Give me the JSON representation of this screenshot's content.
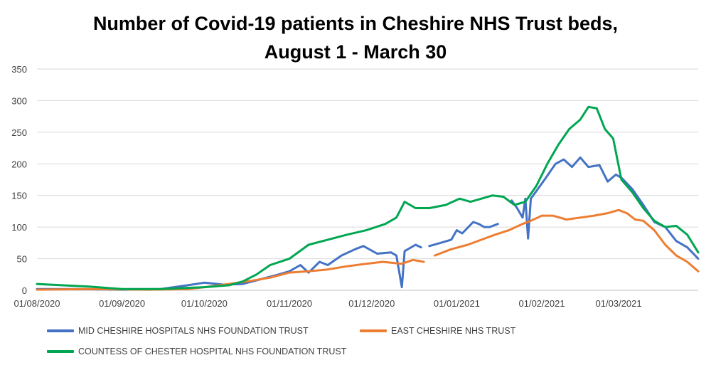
{
  "chart_data": {
    "type": "line",
    "title_lines": [
      "Number of Covid-19 patients in Cheshire NHS Trust beds,",
      "August 1 - March 30"
    ],
    "xlabel": "",
    "ylabel": "",
    "ylim": [
      0,
      350
    ],
    "yticks": [
      0,
      50,
      100,
      150,
      200,
      250,
      300,
      350
    ],
    "xlim": [
      "2020-08-01",
      "2021-03-30"
    ],
    "xticks": [
      "01/08/2020",
      "01/09/2020",
      "01/10/2020",
      "01/11/2020",
      "01/12/2020",
      "01/01/2021",
      "01/02/2021",
      "01/03/2021"
    ],
    "grid": "horizontal",
    "legend_position": "bottom",
    "series": [
      {
        "name": "MID CHESHIRE HOSPITALS NHS FOUNDATION TRUST",
        "color": "#4472C4",
        "segments": [
          [
            [
              "2020-08-01",
              2
            ],
            [
              "2020-08-15",
              2
            ],
            [
              "2020-09-01",
              1
            ],
            [
              "2020-09-15",
              2
            ],
            [
              "2020-09-25",
              8
            ],
            [
              "2020-10-01",
              12
            ],
            [
              "2020-10-08",
              9
            ],
            [
              "2020-10-15",
              10
            ],
            [
              "2020-10-22",
              18
            ],
            [
              "2020-10-28",
              25
            ],
            [
              "2020-11-01",
              30
            ],
            [
              "2020-11-05",
              40
            ],
            [
              "2020-11-08",
              28
            ],
            [
              "2020-11-12",
              45
            ],
            [
              "2020-11-15",
              40
            ],
            [
              "2020-11-20",
              55
            ],
            [
              "2020-11-25",
              65
            ],
            [
              "2020-11-28",
              70
            ],
            [
              "2020-12-03",
              58
            ],
            [
              "2020-12-08",
              60
            ],
            [
              "2020-12-10",
              55
            ],
            [
              "2020-12-12",
              5
            ],
            [
              "2020-12-13",
              62
            ],
            [
              "2020-12-17",
              72
            ],
            [
              "2020-12-19",
              68
            ]
          ],
          [
            [
              "2020-12-22",
              70
            ],
            [
              "2020-12-26",
              75
            ],
            [
              "2020-12-30",
              80
            ],
            [
              "2021-01-01",
              95
            ],
            [
              "2021-01-03",
              90
            ],
            [
              "2021-01-07",
              108
            ],
            [
              "2021-01-09",
              105
            ],
            [
              "2021-01-11",
              100
            ],
            [
              "2021-01-13",
              100
            ],
            [
              "2021-01-16",
              105
            ]
          ],
          [
            [
              "2021-01-21",
              142
            ],
            [
              "2021-01-23",
              130
            ],
            [
              "2021-01-25",
              115
            ],
            [
              "2021-01-26",
              145
            ],
            [
              "2021-01-27",
              82
            ],
            [
              "2021-01-28",
              145
            ],
            [
              "2021-02-02",
              175
            ],
            [
              "2021-02-06",
              200
            ],
            [
              "2021-02-09",
              207
            ],
            [
              "2021-02-12",
              195
            ],
            [
              "2021-02-15",
              210
            ],
            [
              "2021-02-18",
              195
            ],
            [
              "2021-02-22",
              198
            ],
            [
              "2021-02-25",
              172
            ],
            [
              "2021-02-28",
              183
            ],
            [
              "2021-03-02",
              178
            ],
            [
              "2021-03-06",
              160
            ],
            [
              "2021-03-10",
              135
            ],
            [
              "2021-03-14",
              108
            ],
            [
              "2021-03-18",
              100
            ],
            [
              "2021-03-22",
              78
            ],
            [
              "2021-03-26",
              68
            ],
            [
              "2021-03-30",
              50
            ]
          ]
        ]
      },
      {
        "name": "EAST CHESHIRE NHS TRUST",
        "color": "#ED7D31",
        "segments": [
          [
            [
              "2020-08-01",
              1
            ],
            [
              "2020-08-20",
              2
            ],
            [
              "2020-09-10",
              1
            ],
            [
              "2020-09-25",
              2
            ],
            [
              "2020-10-01",
              5
            ],
            [
              "2020-10-10",
              10
            ],
            [
              "2020-10-18",
              15
            ],
            [
              "2020-10-25",
              20
            ],
            [
              "2020-11-01",
              28
            ],
            [
              "2020-11-08",
              30
            ],
            [
              "2020-11-15",
              33
            ],
            [
              "2020-11-22",
              38
            ],
            [
              "2020-11-29",
              42
            ],
            [
              "2020-12-05",
              45
            ],
            [
              "2020-12-12",
              42
            ],
            [
              "2020-12-16",
              48
            ],
            [
              "2020-12-20",
              45
            ]
          ],
          [
            [
              "2020-12-24",
              55
            ],
            [
              "2020-12-30",
              65
            ],
            [
              "2021-01-05",
              72
            ],
            [
              "2021-01-10",
              80
            ],
            [
              "2021-01-15",
              88
            ],
            [
              "2021-01-20",
              95
            ],
            [
              "2021-01-25",
              105
            ],
            [
              "2021-01-28",
              110
            ],
            [
              "2021-02-01",
              118
            ],
            [
              "2021-02-05",
              118
            ],
            [
              "2021-02-10",
              112
            ],
            [
              "2021-02-15",
              115
            ],
            [
              "2021-02-20",
              118
            ],
            [
              "2021-02-25",
              122
            ],
            [
              "2021-03-01",
              127
            ],
            [
              "2021-03-04",
              122
            ],
            [
              "2021-03-07",
              112
            ],
            [
              "2021-03-10",
              110
            ],
            [
              "2021-03-14",
              95
            ],
            [
              "2021-03-18",
              72
            ],
            [
              "2021-03-22",
              55
            ],
            [
              "2021-03-26",
              45
            ],
            [
              "2021-03-30",
              30
            ]
          ]
        ]
      },
      {
        "name": "COUNTESS OF CHESTER HOSPITAL NHS FOUNDATION TRUST",
        "color": "#00A651",
        "segments": [
          [
            [
              "2020-08-01",
              10
            ],
            [
              "2020-08-10",
              8
            ],
            [
              "2020-08-20",
              6
            ],
            [
              "2020-09-01",
              2
            ],
            [
              "2020-09-15",
              2
            ],
            [
              "2020-10-01",
              5
            ],
            [
              "2020-10-10",
              8
            ],
            [
              "2020-10-15",
              14
            ],
            [
              "2020-10-20",
              25
            ],
            [
              "2020-10-25",
              40
            ],
            [
              "2020-11-01",
              50
            ],
            [
              "2020-11-08",
              72
            ],
            [
              "2020-11-15",
              80
            ],
            [
              "2020-11-22",
              88
            ],
            [
              "2020-11-29",
              95
            ],
            [
              "2020-12-06",
              105
            ],
            [
              "2020-12-10",
              115
            ],
            [
              "2020-12-13",
              140
            ],
            [
              "2020-12-17",
              130
            ],
            [
              "2020-12-22",
              130
            ],
            [
              "2020-12-28",
              135
            ],
            [
              "2021-01-02",
              145
            ],
            [
              "2021-01-06",
              140
            ],
            [
              "2021-01-10",
              145
            ],
            [
              "2021-01-14",
              150
            ],
            [
              "2021-01-18",
              148
            ],
            [
              "2021-01-22",
              135
            ],
            [
              "2021-01-26",
              140
            ],
            [
              "2021-01-30",
              165
            ],
            [
              "2021-02-03",
              200
            ],
            [
              "2021-02-07",
              230
            ],
            [
              "2021-02-11",
              255
            ],
            [
              "2021-02-15",
              270
            ],
            [
              "2021-02-18",
              290
            ],
            [
              "2021-02-21",
              288
            ],
            [
              "2021-02-24",
              255
            ],
            [
              "2021-02-27",
              240
            ],
            [
              "2021-03-02",
              175
            ],
            [
              "2021-03-06",
              155
            ],
            [
              "2021-03-10",
              130
            ],
            [
              "2021-03-14",
              110
            ],
            [
              "2021-03-18",
              100
            ],
            [
              "2021-03-22",
              102
            ],
            [
              "2021-03-26",
              88
            ],
            [
              "2021-03-30",
              60
            ]
          ]
        ]
      }
    ]
  }
}
